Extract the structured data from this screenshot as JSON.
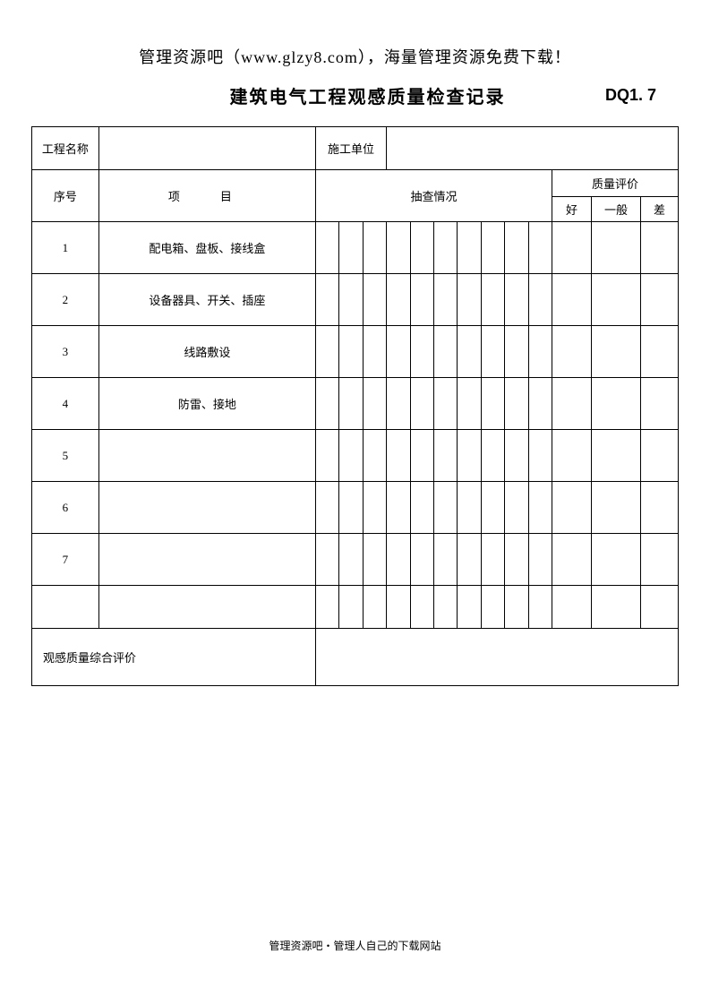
{
  "header_text": "管理资源吧（www.glzy8.com），海量管理资源免费下载！",
  "doc_title": "建筑电气工程观感质量检查记录",
  "doc_code": "DQ1. 7",
  "labels": {
    "project_name": "工程名称",
    "construction_unit": "施工单位",
    "seq_no": "序号",
    "item": "项　目",
    "inspection": "抽查情况",
    "quality_eval": "质量评价",
    "good": "好",
    "normal": "一般",
    "bad": "差",
    "overall_eval": "观感质量综合评价"
  },
  "rows": [
    {
      "no": "1",
      "item": "配电箱、盘板、接线盒"
    },
    {
      "no": "2",
      "item": "设备器具、开关、插座"
    },
    {
      "no": "3",
      "item": "线路敷设"
    },
    {
      "no": "4",
      "item": "防雷、接地"
    },
    {
      "no": "5",
      "item": ""
    },
    {
      "no": "6",
      "item": ""
    },
    {
      "no": "7",
      "item": ""
    }
  ],
  "footer_text": "管理资源吧・管理人自己的下载网站",
  "table": {
    "inspection_cols": 10,
    "col_widths": {
      "seq": 68,
      "item": 220,
      "inspection_each": 24,
      "good": 40,
      "normal": 50,
      "bad": 38
    }
  }
}
